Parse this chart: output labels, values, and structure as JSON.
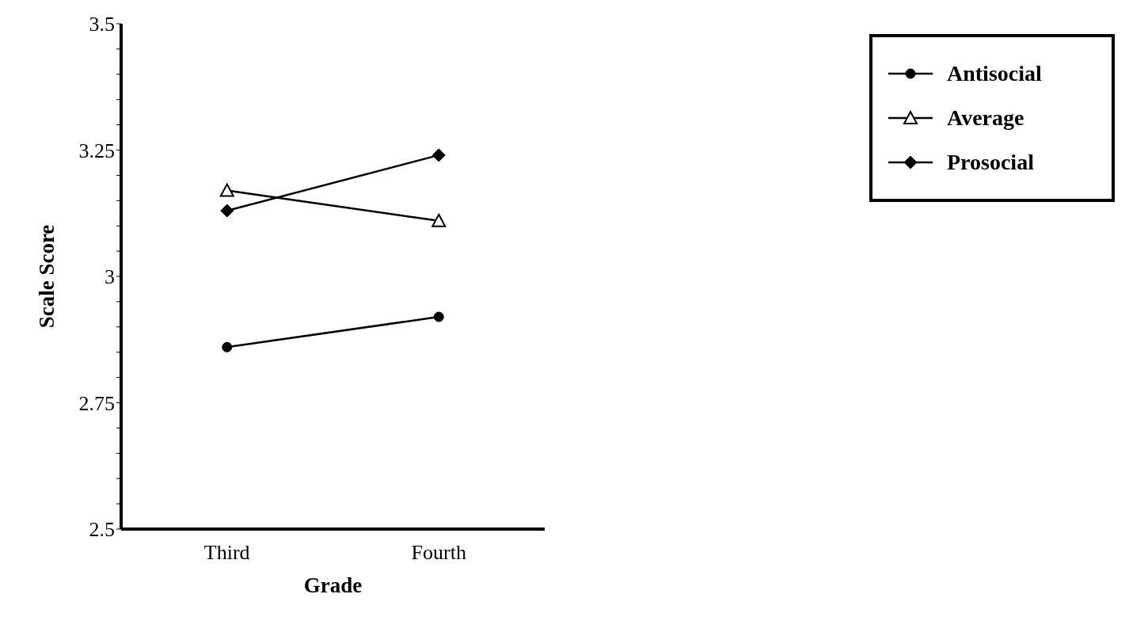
{
  "chart_data": {
    "type": "line",
    "xlabel": "Grade",
    "ylabel": "Scale Score",
    "categories": [
      "Third",
      "Fourth"
    ],
    "series": [
      {
        "name": "Antisocial",
        "color": "#000000",
        "marker": "circle",
        "values": [
          2.86,
          2.92
        ]
      },
      {
        "name": "Average",
        "color": "#000000",
        "marker": "triangle",
        "values": [
          3.17,
          3.11
        ]
      },
      {
        "name": "Prosocial",
        "color": "#000000",
        "marker": "diamond",
        "values": [
          3.13,
          3.24
        ]
      }
    ],
    "ylim": [
      2.5,
      3.5
    ],
    "yticks": [
      2.5,
      {
        "value": 2.55,
        "label": null
      },
      {
        "value": 2.6,
        "label": null
      },
      {
        "value": 2.65,
        "label": null
      },
      {
        "value": 2.7,
        "label": null
      },
      2.75,
      {
        "value": 2.8,
        "label": null
      },
      {
        "value": 2.85,
        "label": null
      },
      {
        "value": 2.9,
        "label": null
      },
      {
        "value": 2.95,
        "label": null
      },
      3,
      {
        "value": 3.05,
        "label": null
      },
      {
        "value": 3.1,
        "label": null
      },
      {
        "value": 3.15,
        "label": null
      },
      {
        "value": 3.2,
        "label": null
      },
      3.25,
      {
        "value": 3.3,
        "label": null
      },
      {
        "value": 3.35,
        "label": null
      },
      {
        "value": 3.4,
        "label": null
      },
      {
        "value": 3.45,
        "label": null
      },
      3.5
    ],
    "grid": false,
    "legend": "top right",
    "line_style": "solid"
  }
}
